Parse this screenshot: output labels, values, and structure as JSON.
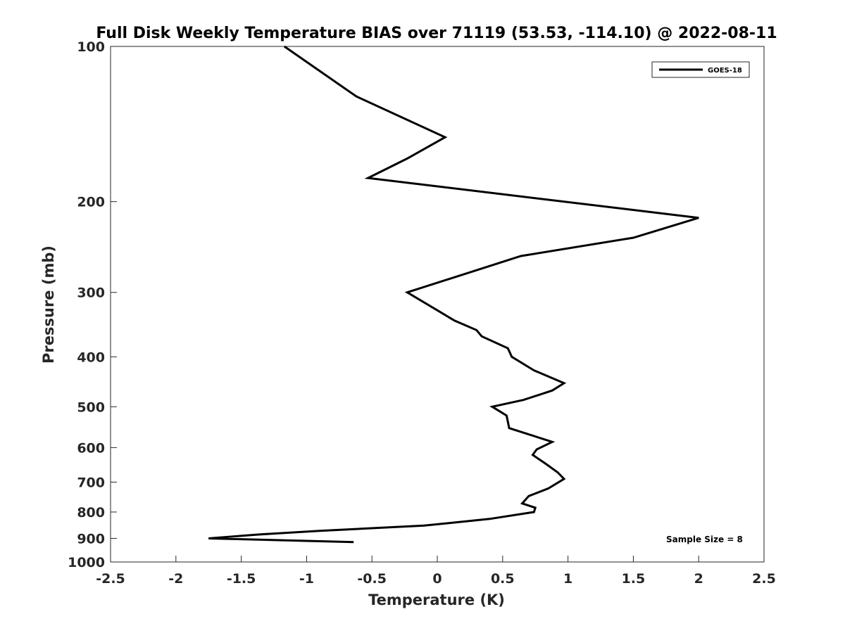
{
  "chart_data": {
    "type": "line",
    "title": "Full Disk Weekly Temperature BIAS over 71119 (53.53, -114.10) @ 2022-08-11",
    "xlabel": "Temperature (K)",
    "ylabel": "Pressure (mb)",
    "xlim": [
      -2.5,
      2.5
    ],
    "ylim": [
      1000,
      100
    ],
    "y_scale": "log",
    "y_reversed": true,
    "x_ticks": [
      -2.5,
      -2,
      -1.5,
      -1,
      -0.5,
      0,
      0.5,
      1,
      1.5,
      2,
      2.5
    ],
    "x_tick_labels": [
      "-2.5",
      "-2",
      "-1.5",
      "-1",
      "-0.5",
      "0",
      "0.5",
      "1",
      "1.5",
      "2",
      "2.5"
    ],
    "y_ticks": [
      100,
      200,
      300,
      400,
      500,
      600,
      700,
      800,
      900,
      1000
    ],
    "y_tick_labels": [
      "100",
      "200",
      "300",
      "400",
      "500",
      "600",
      "700",
      "800",
      "900",
      "1000"
    ],
    "grid": false,
    "legend_position": "top-right",
    "annotation": "Sample Size = 8",
    "series": [
      {
        "name": "GOES-18",
        "color": "#000000",
        "points": [
          {
            "x": -1.17,
            "y": 100
          },
          {
            "x": -0.62,
            "y": 125
          },
          {
            "x": 0.06,
            "y": 150
          },
          {
            "x": -0.23,
            "y": 165
          },
          {
            "x": -0.53,
            "y": 180
          },
          {
            "x": 2.0,
            "y": 215
          },
          {
            "x": 1.5,
            "y": 235
          },
          {
            "x": 0.64,
            "y": 255
          },
          {
            "x": -0.23,
            "y": 300
          },
          {
            "x": 0.13,
            "y": 340
          },
          {
            "x": 0.3,
            "y": 355
          },
          {
            "x": 0.34,
            "y": 365
          },
          {
            "x": 0.54,
            "y": 385
          },
          {
            "x": 0.57,
            "y": 400
          },
          {
            "x": 0.74,
            "y": 425
          },
          {
            "x": 0.97,
            "y": 450
          },
          {
            "x": 0.88,
            "y": 465
          },
          {
            "x": 0.66,
            "y": 485
          },
          {
            "x": 0.42,
            "y": 500
          },
          {
            "x": 0.53,
            "y": 520
          },
          {
            "x": 0.55,
            "y": 550
          },
          {
            "x": 0.88,
            "y": 585
          },
          {
            "x": 0.76,
            "y": 605
          },
          {
            "x": 0.73,
            "y": 620
          },
          {
            "x": 0.83,
            "y": 645
          },
          {
            "x": 0.92,
            "y": 670
          },
          {
            "x": 0.97,
            "y": 690
          },
          {
            "x": 0.85,
            "y": 720
          },
          {
            "x": 0.7,
            "y": 745
          },
          {
            "x": 0.65,
            "y": 770
          },
          {
            "x": 0.75,
            "y": 785
          },
          {
            "x": 0.74,
            "y": 800
          },
          {
            "x": 0.4,
            "y": 825
          },
          {
            "x": -0.1,
            "y": 850
          },
          {
            "x": -0.9,
            "y": 870
          },
          {
            "x": -1.38,
            "y": 885
          },
          {
            "x": -1.75,
            "y": 900
          },
          {
            "x": -0.64,
            "y": 915
          }
        ]
      }
    ]
  }
}
